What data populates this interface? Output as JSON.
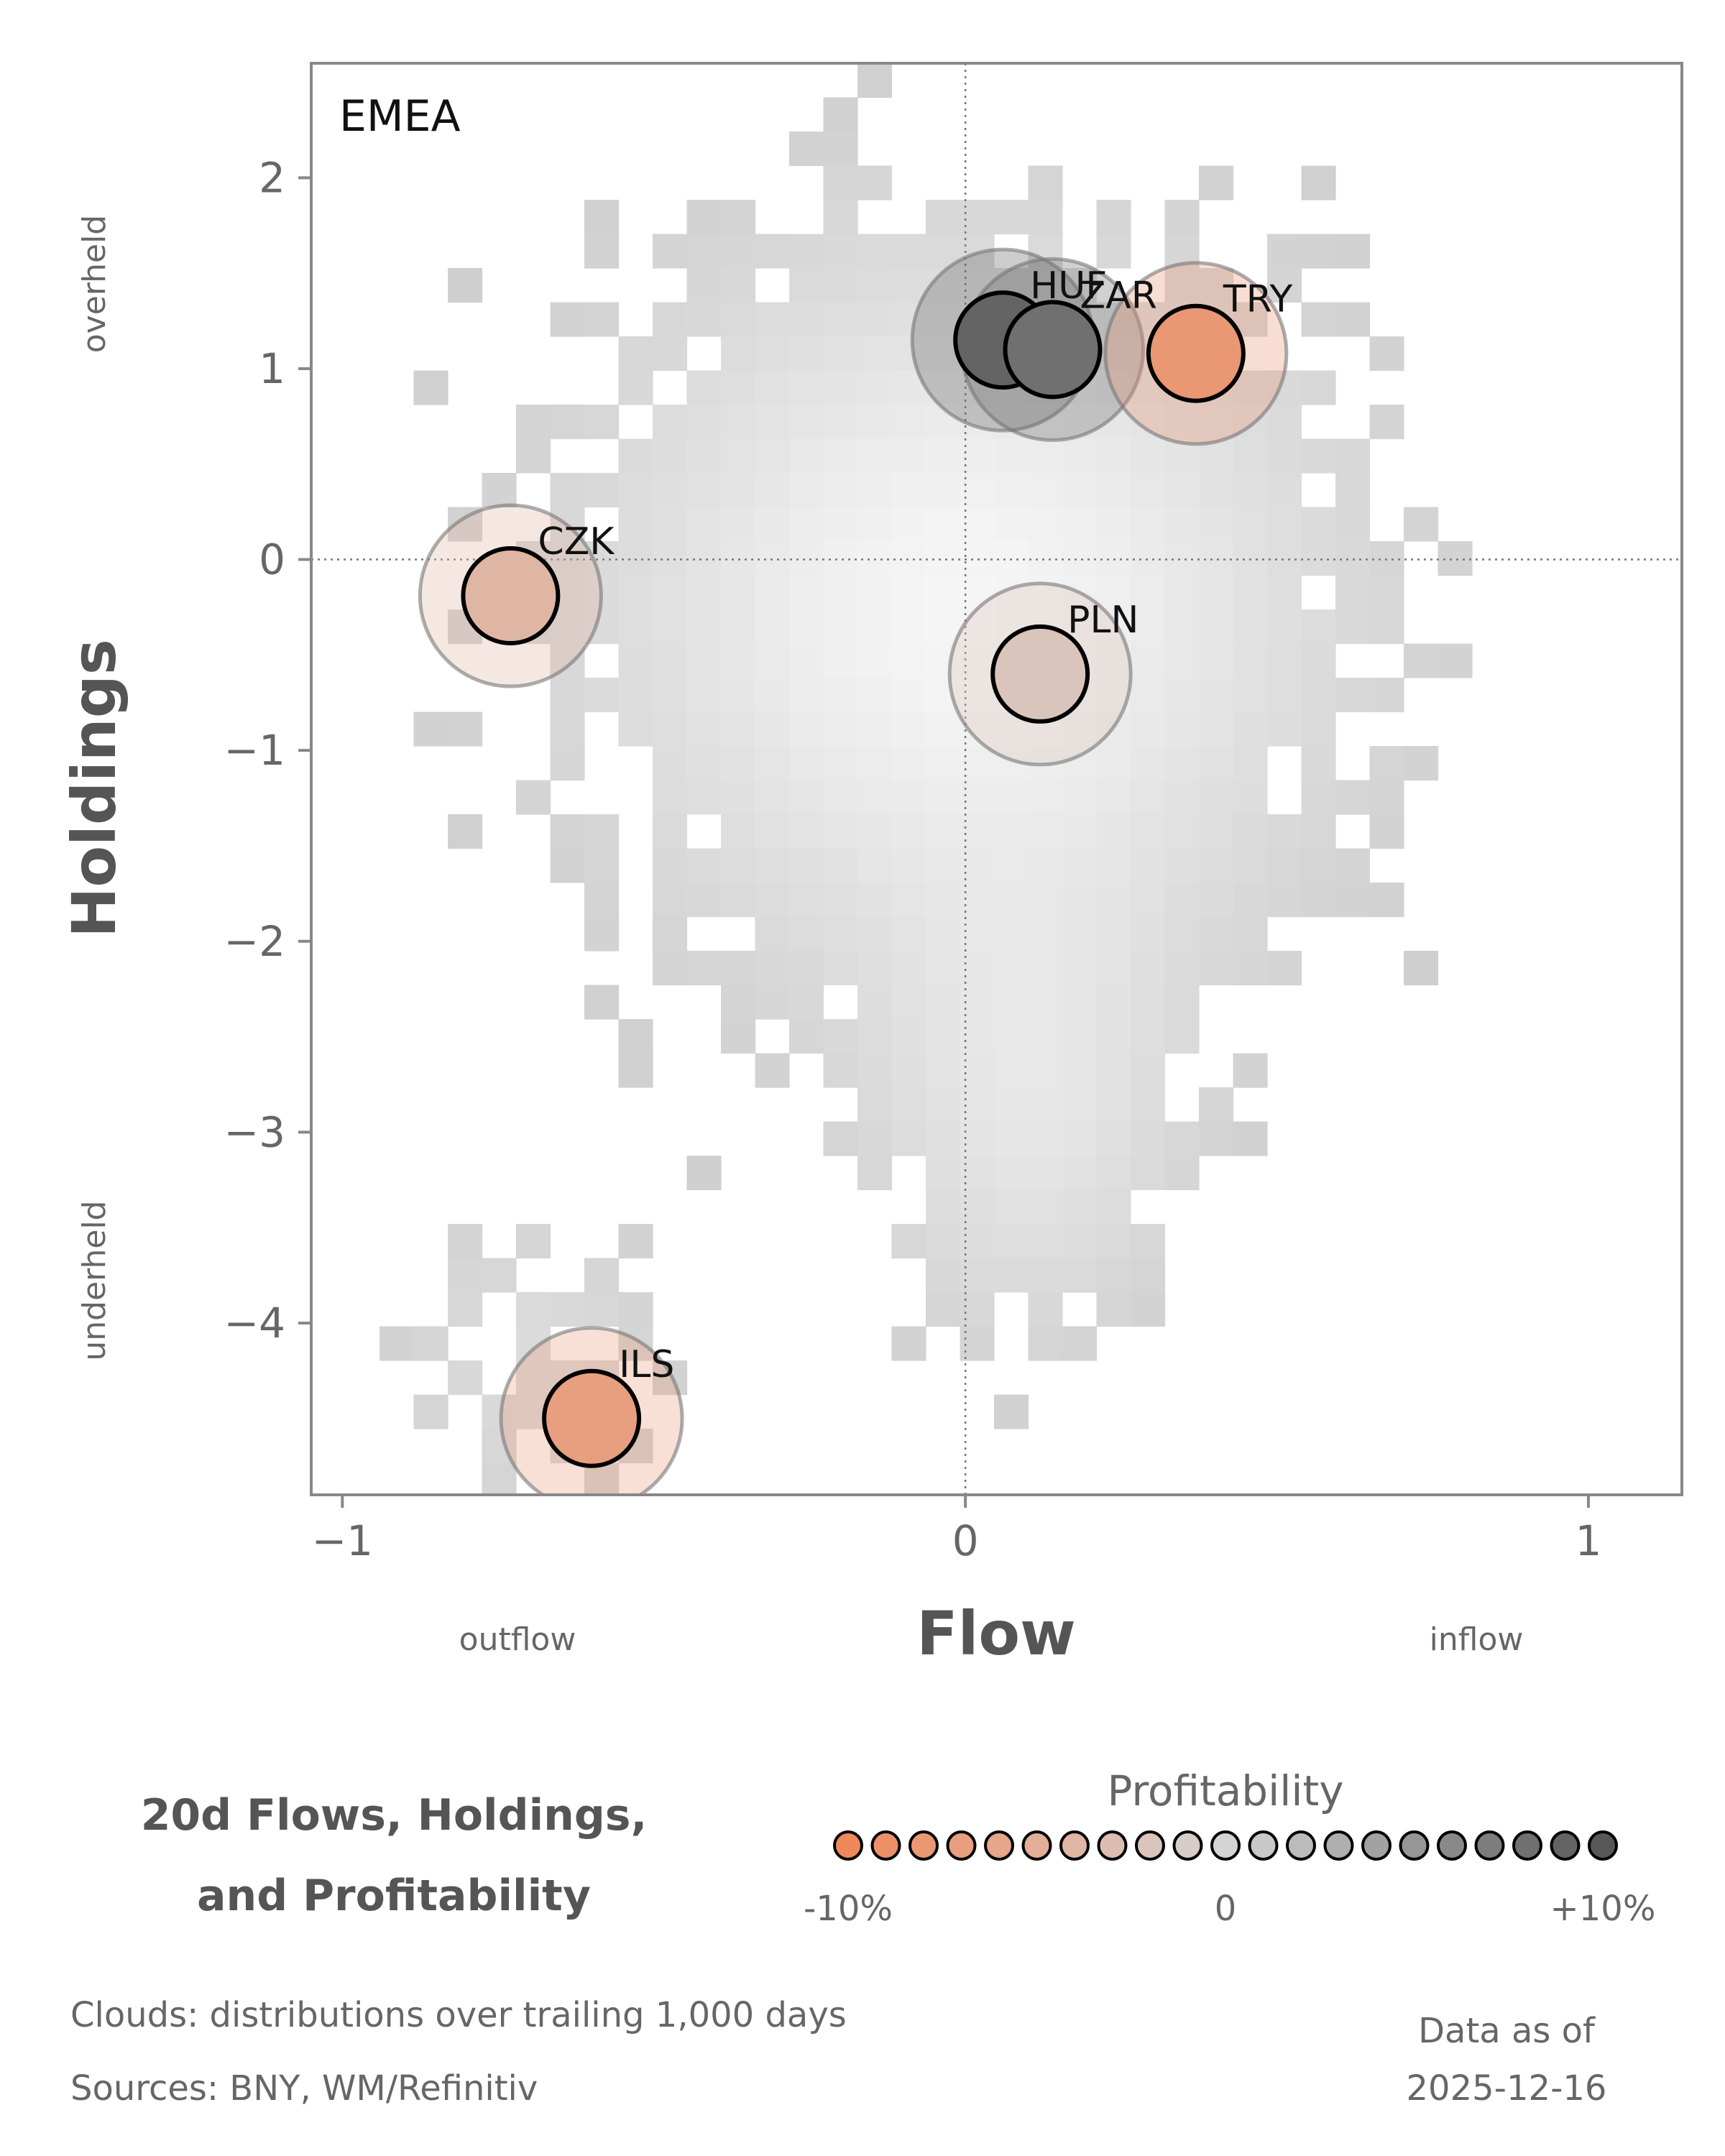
{
  "chart_data": {
    "type": "scatter",
    "region": "EMEA",
    "xlabel": "Flow",
    "ylabel": "Holdings",
    "xlim": [
      -1.05,
      1.15
    ],
    "ylim": [
      -4.9,
      2.6
    ],
    "xticks": [
      {
        "v": -1,
        "t": "−1"
      },
      {
        "v": 0,
        "t": "0"
      },
      {
        "v": 1,
        "t": "1"
      }
    ],
    "yticks": [
      {
        "v": 2,
        "t": "2"
      },
      {
        "v": 1,
        "t": "1"
      },
      {
        "v": 0,
        "t": "0"
      },
      {
        "v": -1,
        "t": "−1"
      },
      {
        "v": -2,
        "t": "−2"
      },
      {
        "v": -3,
        "t": "−3"
      },
      {
        "v": -4,
        "t": "−4"
      }
    ],
    "x_side_labels": {
      "low": "outflow",
      "high": "inflow"
    },
    "y_side_labels": {
      "high": "overheld",
      "low": "underheld"
    },
    "points": [
      {
        "label": "HUF",
        "x": 0.06,
        "y": 1.15,
        "profitability": 9
      },
      {
        "label": "ZAR",
        "x": 0.14,
        "y": 1.1,
        "profitability": 8
      },
      {
        "label": "TRY",
        "x": 0.37,
        "y": 1.08,
        "profitability": -8
      },
      {
        "label": "CZK",
        "x": -0.73,
        "y": -0.19,
        "profitability": -4
      },
      {
        "label": "PLN",
        "x": 0.12,
        "y": -0.6,
        "profitability": -2
      },
      {
        "label": "ILS",
        "x": -0.6,
        "y": -4.5,
        "profitability": -7
      }
    ],
    "legend": {
      "title": "Profitability",
      "min_label": "-10%",
      "mid_label": "0",
      "max_label": "+10%",
      "steps": 21
    },
    "background": "density cloud (grey histogram)",
    "grid": false
  },
  "colors": {
    "negative": "#f0885c",
    "neutral": "#d4d4d4",
    "positive": "#575757",
    "frame": "#888888"
  },
  "footer": {
    "title_line1": "20d Flows, Holdings,",
    "title_line2": "and Profitability",
    "clouds_note": "Clouds:  distributions over trailing 1,000 days",
    "sources_note": "Sources:  BNY, WM/Refinitiv",
    "asof_line1": "Data as of",
    "asof_line2": "2025-12-16"
  }
}
